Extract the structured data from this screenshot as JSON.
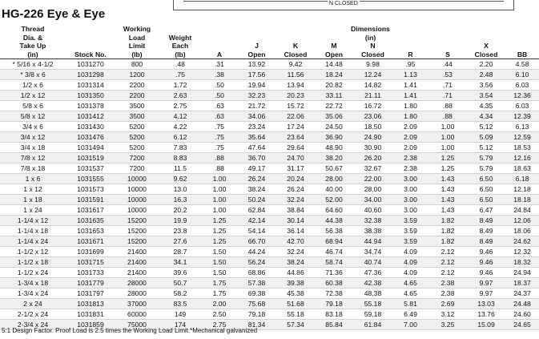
{
  "header": {
    "title": "HG-226 Eye & Eye",
    "diagram_label": "N CLOSED"
  },
  "table": {
    "group": [
      "Dimensions",
      "(in)"
    ],
    "columns": [
      [
        "Thread",
        "Dia. &",
        "Take Up",
        "(in)"
      ],
      [
        "Stock No."
      ],
      [
        "Working",
        "Load",
        "Limit",
        "(lb)"
      ],
      [
        "Weight",
        "Each",
        "(lb)"
      ],
      [
        "A"
      ],
      [
        "J",
        "Open"
      ],
      [
        "K",
        "Closed"
      ],
      [
        "M",
        "Open"
      ],
      [
        "N",
        "Closed"
      ],
      [
        "R"
      ],
      [
        "S"
      ],
      [
        "X",
        "Closed"
      ],
      [
        "BB"
      ]
    ],
    "rows": [
      [
        "* 5/16 x 4-1/2",
        "1031270",
        "800",
        ".48",
        ".31",
        "13.92",
        "9.42",
        "14.48",
        "9.98",
        ".95",
        ".44",
        "2.20",
        "4.58"
      ],
      [
        "* 3/8 x 6",
        "1031298",
        "1200",
        ".75",
        ".38",
        "17.56",
        "11.56",
        "18.24",
        "12.24",
        "1.13",
        ".53",
        "2.48",
        "6.10"
      ],
      [
        "1/2 x 6",
        "1031314",
        "2200",
        "1.72",
        ".50",
        "19.94",
        "13.94",
        "20.82",
        "14.82",
        "1.41",
        ".71",
        "3.56",
        "6.03"
      ],
      [
        "1/2 x 12",
        "1031350",
        "2200",
        "2.63",
        ".50",
        "32.23",
        "20.23",
        "33.11",
        "21.11",
        "1.41",
        ".71",
        "3.54",
        "12.36"
      ],
      [
        "5/8 x 6",
        "1031378",
        "3500",
        "2.75",
        ".63",
        "21.72",
        "15.72",
        "22.72",
        "16.72",
        "1.80",
        ".88",
        "4.35",
        "6.03"
      ],
      [
        "5/8 x 12",
        "1031412",
        "3500",
        "4.12",
        ".63",
        "34.06",
        "22.06",
        "35.06",
        "23.06",
        "1.80",
        ".88",
        "4.34",
        "12.39"
      ],
      [
        "3/4 x 6",
        "1031430",
        "5200",
        "4.22",
        ".75",
        "23.24",
        "17.24",
        "24.50",
        "18.50",
        "2.09",
        "1.00",
        "5.12",
        "6.13"
      ],
      [
        "3/4 x 12",
        "1031476",
        "5200",
        "6.12",
        ".75",
        "35.64",
        "23.64",
        "36.90",
        "24.90",
        "2.09",
        "1.00",
        "5.09",
        "12.59"
      ],
      [
        "3/4 x 18",
        "1031494",
        "5200",
        "7.83",
        ".75",
        "47.64",
        "29.64",
        "48.90",
        "30.90",
        "2.09",
        "1.00",
        "5.12",
        "18.53"
      ],
      [
        "7/8 x 12",
        "1031519",
        "7200",
        "8.83",
        ".88",
        "36.70",
        "24.70",
        "38.20",
        "26.20",
        "2.38",
        "1.25",
        "5.79",
        "12.16"
      ],
      [
        "7/8 x 18",
        "1031537",
        "7200",
        "11.5",
        ".88",
        "49.17",
        "31.17",
        "50.67",
        "32.67",
        "2.38",
        "1.25",
        "5.79",
        "18.63"
      ],
      [
        "1 x 6",
        "1031555",
        "10000",
        "9.62",
        "1.00",
        "26.24",
        "20.24",
        "28.00",
        "22.00",
        "3.00",
        "1.43",
        "6.50",
        "6.18"
      ],
      [
        "1 x 12",
        "1031573",
        "10000",
        "13.0",
        "1.00",
        "38.24",
        "26.24",
        "40.00",
        "28.00",
        "3.00",
        "1.43",
        "6.50",
        "12.18"
      ],
      [
        "1 x 18",
        "1031591",
        "10000",
        "16.3",
        "1.00",
        "50.24",
        "32.24",
        "52.00",
        "34.00",
        "3.00",
        "1.43",
        "6.50",
        "18.18"
      ],
      [
        "1 x 24",
        "1031617",
        "10000",
        "20.2",
        "1.00",
        "62.84",
        "38.84",
        "64.60",
        "40.60",
        "3.00",
        "1.43",
        "6.47",
        "24.84"
      ],
      [
        "1-1/4 x 12",
        "1031635",
        "15200",
        "19.9",
        "1.25",
        "42.14",
        "30.14",
        "44.38",
        "32.38",
        "3.59",
        "1.82",
        "8.49",
        "12.06"
      ],
      [
        "1-1/4 x 18",
        "1031653",
        "15200",
        "23.8",
        "1.25",
        "54.14",
        "36.14",
        "56.38",
        "38.38",
        "3.59",
        "1.82",
        "8.49",
        "18.06"
      ],
      [
        "1-1/4 x 24",
        "1031671",
        "15200",
        "27.6",
        "1.25",
        "66.70",
        "42.70",
        "68.94",
        "44.94",
        "3.59",
        "1.82",
        "8.49",
        "24.62"
      ],
      [
        "1-1/2 x 12",
        "1031699",
        "21400",
        "28.7",
        "1.50",
        "44.24",
        "32.24",
        "46.74",
        "34.74",
        "4.09",
        "2.12",
        "9.46",
        "12.32"
      ],
      [
        "1-1/2 x 18",
        "1031715",
        "21400",
        "34.1",
        "1.50",
        "56.24",
        "38.24",
        "58.74",
        "40.74",
        "4.09",
        "2.12",
        "9.46",
        "18.32"
      ],
      [
        "1-1/2 x 24",
        "1031733",
        "21400",
        "39.6",
        "1.50",
        "68.86",
        "44.86",
        "71.36",
        "47.36",
        "4.09",
        "2.12",
        "9.46",
        "24.94"
      ],
      [
        "1-3/4 x 18",
        "1031779",
        "28000",
        "50.7",
        "1.75",
        "57.38",
        "39.38",
        "60.38",
        "42.38",
        "4.65",
        "2.38",
        "9.97",
        "18.37"
      ],
      [
        "1-3/4 x 24",
        "1031797",
        "28000",
        "58.2",
        "1.75",
        "69.38",
        "45.38",
        "72.38",
        "48.38",
        "4.65",
        "2.38",
        "9.97",
        "24.37"
      ],
      [
        "2 x 24",
        "1031813",
        "37000",
        "83.5",
        "2.00",
        "75.68",
        "51.68",
        "79.18",
        "55.18",
        "5.81",
        "2.69",
        "13.03",
        "24.48"
      ],
      [
        "2-1/2 x 24",
        "1031831",
        "60000",
        "149",
        "2.50",
        "79.18",
        "55.18",
        "83.18",
        "59.18",
        "6.49",
        "3.12",
        "13.76",
        "24.60"
      ],
      [
        "2-3/4 x 24",
        "1031859",
        "75000",
        "174",
        "2.75",
        "81.34",
        "57.34",
        "85.84",
        "61.84",
        "7.00",
        "3.25",
        "15.09",
        "24.65"
      ]
    ]
  },
  "footer": "5:1 Design Factor. Proof Load is 2.5 times the Working Load Limit.*Mechanical galvanized"
}
